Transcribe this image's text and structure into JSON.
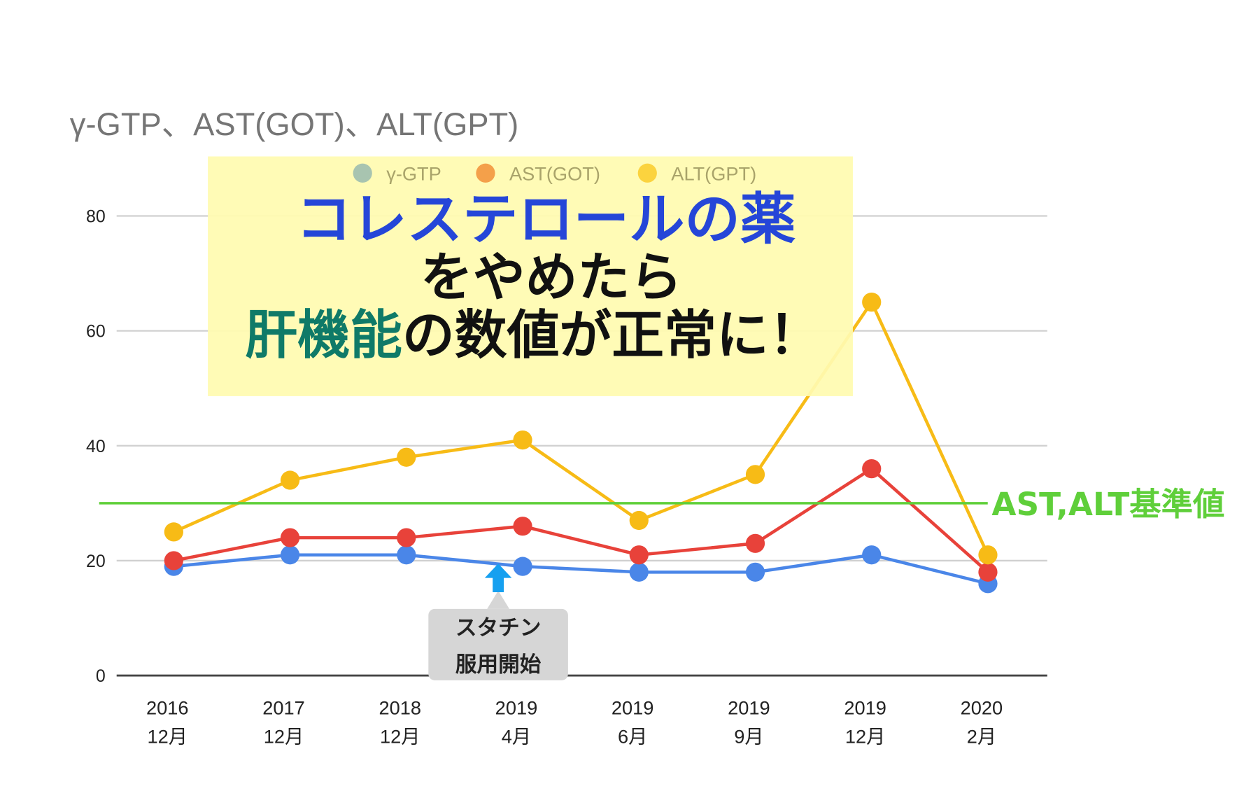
{
  "chart_data": {
    "type": "line",
    "title": "γ-GTP、AST(GOT)、ALT(GPT)",
    "categories": [
      [
        "2016",
        "12月"
      ],
      [
        "2017",
        "12月"
      ],
      [
        "2018",
        "12月"
      ],
      [
        "2019",
        "4月"
      ],
      [
        "2019",
        "6月"
      ],
      [
        "2019",
        "9月"
      ],
      [
        "2019",
        "12月"
      ],
      [
        "2020",
        "2月"
      ]
    ],
    "series": [
      {
        "name": "γ-GTP",
        "legend_color": "#a8c4b0",
        "color": "#4a86e8",
        "values": [
          19,
          21,
          21,
          19,
          18,
          18,
          21,
          16
        ]
      },
      {
        "name": "AST(GOT)",
        "legend_color": "#f4a04a",
        "color": "#e8423a",
        "values": [
          20,
          24,
          24,
          26,
          21,
          23,
          36,
          18
        ]
      },
      {
        "name": "ALT(GPT)",
        "legend_color": "#fbd33e",
        "color": "#f7bb16",
        "values": [
          25,
          34,
          38,
          41,
          27,
          35,
          65,
          21
        ]
      }
    ],
    "ylim": [
      0,
      80
    ],
    "yticks": [
      "0",
      "20",
      "40",
      "60",
      "80"
    ],
    "grid": true,
    "legend_position": "top",
    "reference_line": {
      "value": 30,
      "label": "AST,ALT基準値",
      "color": "#5fcf3a"
    },
    "annotation": {
      "category_index": 3,
      "lines": [
        "スタチン",
        "服用開始"
      ],
      "arrow_color": "#16a0f0"
    },
    "overlay": {
      "line1": "コレステロールの薬",
      "line2": "をやめたら",
      "line3_highlight": "肝機能",
      "line3_rest": "の数値が正常に！",
      "color1": "#2546d8",
      "color2": "#111111",
      "color3": "#0f7a68",
      "background": "#fffbb0"
    }
  }
}
